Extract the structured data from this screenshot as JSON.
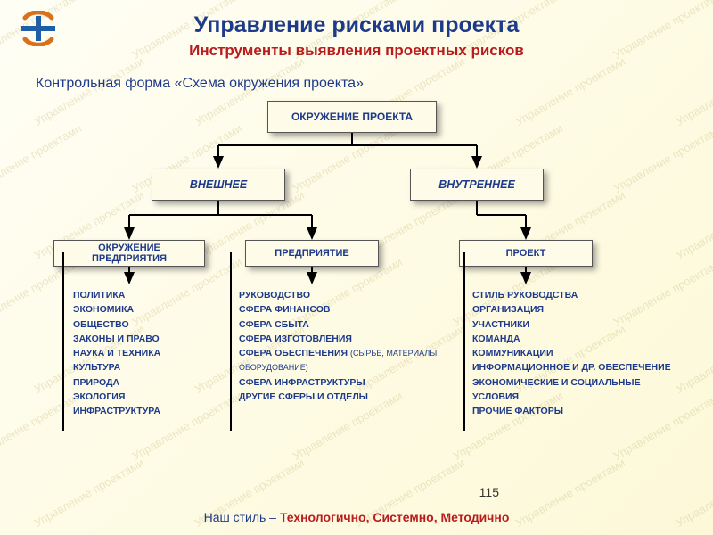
{
  "watermark_text": "Управление проектами",
  "header": {
    "title": "Управление рисками проекта",
    "subtitle": "Инструменты выявления проектных рисков",
    "section_heading": "Контрольная форма «Схема окружения проекта»"
  },
  "diagram": {
    "type": "tree",
    "node_bg": "#fefce8",
    "node_border": "#555555",
    "node_text_color": "#1e3a8a",
    "shadow_color": "rgba(0,0,0,0.35)",
    "root": {
      "label": "ОКРУЖЕНИЕ ПРОЕКТА"
    },
    "level2": [
      {
        "key": "external",
        "label": "ВНЕШНЕЕ"
      },
      {
        "key": "internal",
        "label": "ВНУТРЕННЕЕ"
      }
    ],
    "level3": [
      {
        "key": "env",
        "parent": "external",
        "label": "ОКРУЖЕНИЕ ПРЕДПРИЯТИЯ"
      },
      {
        "key": "enterprise",
        "parent": "external",
        "label": "ПРЕДПРИЯТИЕ"
      },
      {
        "key": "project",
        "parent": "internal",
        "label": "ПРОЕКТ"
      }
    ],
    "leaves": {
      "env": [
        "ПОЛИТИКА",
        "ЭКОНОМИКА",
        "ОБЩЕСТВО",
        "ЗАКОНЫ И ПРАВО",
        "НАУКА И ТЕХНИКА",
        "КУЛЬТУРА",
        "ПРИРОДА",
        "ЭКОЛОГИЯ",
        "ИНФРАСТРУКТУРА"
      ],
      "enterprise": [
        "РУКОВОДСТВО",
        "СФЕРА ФИНАНСОВ",
        "СФЕРА СБЫТА",
        "СФЕРА ИЗГОТОВЛЕНИЯ",
        "СФЕРА ОБЕСПЕЧЕНИЯ <span class='sub'>(СЫРЬЕ, МАТЕРИАЛЫ, ОБОРУДОВАНИЕ)</span>",
        "СФЕРА ИНФРАСТРУКТУРЫ",
        "ДРУГИЕ СФЕРЫ И ОТДЕЛЫ"
      ],
      "project": [
        "СТИЛЬ РУКОВОДСТВА",
        "ОРГАНИЗАЦИЯ",
        "УЧАСТНИКИ",
        "КОМАНДА",
        "КОММУНИКАЦИИ",
        "ИНФОРМАЦИОННОЕ И ДР. ОБЕСПЕЧЕНИЕ",
        "ЭКОНОМИЧЕСКИЕ И СОЦИАЛЬНЫЕ УСЛОВИЯ",
        "ПРОЧИЕ ФАКТОРЫ"
      ]
    }
  },
  "footer": {
    "lead": "Наш стиль – ",
    "strong": "Технологично, Системно, Методично"
  },
  "page_number": "115",
  "colors": {
    "title": "#1e3a8a",
    "subtitle": "#b91c1c",
    "bg_gradient_start": "#fffef5",
    "bg_gradient_end": "#fdf8d8",
    "watermark": "rgba(200,190,130,0.35)",
    "connector": "#000000"
  }
}
